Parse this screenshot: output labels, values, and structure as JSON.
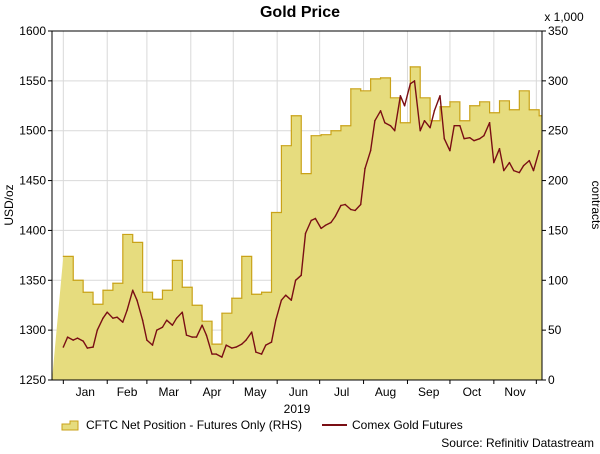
{
  "chart_data": {
    "type": "area+line",
    "title": "Gold Price",
    "ylabel_left": "USD/oz",
    "ylabel_right": "contracts",
    "right_axis_unit_note": "x 1,000",
    "x_year_label": "2019",
    "x_tick_labels": [
      "Jan",
      "Feb",
      "Mar",
      "Apr",
      "May",
      "Jun",
      "Jul",
      "Aug",
      "Sep",
      "Oct",
      "Nov"
    ],
    "ylim_left": [
      1250,
      1600
    ],
    "ylim_right": [
      0,
      350
    ],
    "y_ticks_left": [
      "1250",
      "1300",
      "1350",
      "1400",
      "1450",
      "1500",
      "1550",
      "1600"
    ],
    "y_ticks_right": [
      "0",
      "50",
      "100",
      "150",
      "200",
      "250",
      "300",
      "350"
    ],
    "grid": true,
    "legend_position": "bottom",
    "source": "Source: Refinitiv Datastream",
    "colors": {
      "area_fill": "#E6DC7E",
      "area_edge": "#C9A218",
      "line": "#7A0E14",
      "grid": "#D9D9D9"
    },
    "series": [
      {
        "name": "CFTC Net Position - Futures Only (RHS)",
        "axis": "right",
        "kind": "area-step",
        "x": [
          "2019-01-01",
          "2019-01-08",
          "2019-01-15",
          "2019-01-22",
          "2019-01-29",
          "2019-02-05",
          "2019-02-12",
          "2019-02-19",
          "2019-02-26",
          "2019-03-05",
          "2019-03-12",
          "2019-03-19",
          "2019-03-26",
          "2019-04-02",
          "2019-04-09",
          "2019-04-16",
          "2019-04-23",
          "2019-04-30",
          "2019-05-07",
          "2019-05-14",
          "2019-05-21",
          "2019-05-28",
          "2019-06-04",
          "2019-06-11",
          "2019-06-18",
          "2019-06-25",
          "2019-07-02",
          "2019-07-09",
          "2019-07-16",
          "2019-07-23",
          "2019-07-30",
          "2019-08-06",
          "2019-08-13",
          "2019-08-20",
          "2019-08-27",
          "2019-09-03",
          "2019-09-10",
          "2019-09-17",
          "2019-09-24",
          "2019-10-01",
          "2019-10-08",
          "2019-10-15",
          "2019-10-22",
          "2019-10-29",
          "2019-11-05",
          "2019-11-12",
          "2019-11-19",
          "2019-11-26",
          "2019-12-03"
        ],
        "values": [
          124,
          100,
          88,
          76,
          90,
          97,
          146,
          138,
          88,
          81,
          90,
          120,
          93,
          75,
          59,
          36,
          67,
          82,
          124,
          86,
          88,
          168,
          235,
          265,
          207,
          245,
          246,
          250,
          255,
          292,
          290,
          302,
          303,
          283,
          258,
          314,
          283,
          260,
          274,
          279,
          260,
          275,
          279,
          268,
          280,
          271,
          290,
          271,
          265
        ]
      },
      {
        "name": "Comex Gold Futures",
        "axis": "left",
        "kind": "line",
        "x": [
          "2019-01-01",
          "2019-01-04",
          "2019-01-08",
          "2019-01-11",
          "2019-01-15",
          "2019-01-18",
          "2019-01-22",
          "2019-01-25",
          "2019-01-29",
          "2019-02-01",
          "2019-02-05",
          "2019-02-08",
          "2019-02-12",
          "2019-02-15",
          "2019-02-19",
          "2019-02-22",
          "2019-02-26",
          "2019-03-01",
          "2019-03-05",
          "2019-03-08",
          "2019-03-12",
          "2019-03-15",
          "2019-03-19",
          "2019-03-22",
          "2019-03-26",
          "2019-03-29",
          "2019-04-02",
          "2019-04-05",
          "2019-04-09",
          "2019-04-12",
          "2019-04-16",
          "2019-04-19",
          "2019-04-23",
          "2019-04-26",
          "2019-04-30",
          "2019-05-03",
          "2019-05-07",
          "2019-05-10",
          "2019-05-14",
          "2019-05-17",
          "2019-05-21",
          "2019-05-24",
          "2019-05-28",
          "2019-05-31",
          "2019-06-04",
          "2019-06-07",
          "2019-06-11",
          "2019-06-14",
          "2019-06-18",
          "2019-06-21",
          "2019-06-25",
          "2019-06-28",
          "2019-07-02",
          "2019-07-05",
          "2019-07-09",
          "2019-07-12",
          "2019-07-16",
          "2019-07-19",
          "2019-07-23",
          "2019-07-26",
          "2019-07-30",
          "2019-08-02",
          "2019-08-06",
          "2019-08-09",
          "2019-08-13",
          "2019-08-16",
          "2019-08-20",
          "2019-08-23",
          "2019-08-27",
          "2019-08-30",
          "2019-09-03",
          "2019-09-06",
          "2019-09-10",
          "2019-09-13",
          "2019-09-17",
          "2019-09-20",
          "2019-09-24",
          "2019-09-27",
          "2019-10-01",
          "2019-10-04",
          "2019-10-08",
          "2019-10-11",
          "2019-10-15",
          "2019-10-18",
          "2019-10-22",
          "2019-10-25",
          "2019-10-29",
          "2019-11-01",
          "2019-11-05",
          "2019-11-08",
          "2019-11-12",
          "2019-11-15",
          "2019-11-19",
          "2019-11-22",
          "2019-11-26",
          "2019-11-29",
          "2019-12-03"
        ],
        "values": [
          1283,
          1293,
          1290,
          1292,
          1289,
          1282,
          1283,
          1300,
          1312,
          1318,
          1312,
          1313,
          1308,
          1320,
          1340,
          1330,
          1310,
          1290,
          1285,
          1300,
          1303,
          1310,
          1305,
          1312,
          1318,
          1295,
          1293,
          1293,
          1305,
          1295,
          1276,
          1276,
          1273,
          1285,
          1282,
          1283,
          1286,
          1290,
          1298,
          1278,
          1276,
          1285,
          1288,
          1310,
          1330,
          1335,
          1330,
          1350,
          1355,
          1397,
          1410,
          1412,
          1402,
          1405,
          1408,
          1414,
          1425,
          1426,
          1421,
          1420,
          1426,
          1462,
          1480,
          1510,
          1520,
          1508,
          1505,
          1500,
          1535,
          1525,
          1547,
          1550,
          1500,
          1510,
          1503,
          1520,
          1535,
          1492,
          1480,
          1505,
          1505,
          1492,
          1493,
          1490,
          1492,
          1495,
          1508,
          1468,
          1482,
          1460,
          1468,
          1460,
          1458,
          1465,
          1470,
          1460,
          1480
        ]
      }
    ]
  }
}
